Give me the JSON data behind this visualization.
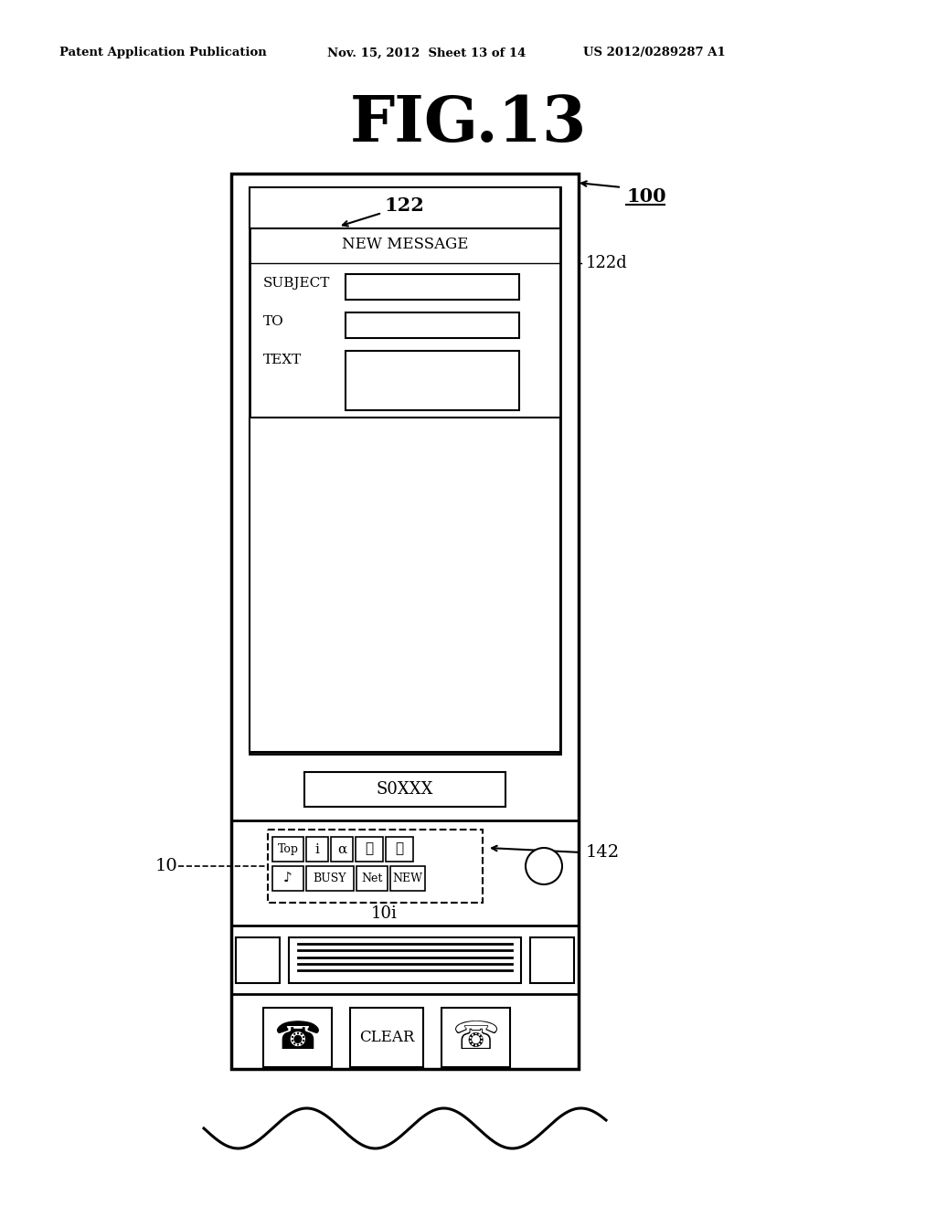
{
  "title": "FIG.13",
  "header_left": "Patent Application Publication",
  "header_mid": "Nov. 15, 2012  Sheet 13 of 14",
  "header_right": "US 2012/0289287 A1",
  "bg_color": "#ffffff",
  "label_100": "100",
  "label_122": "122",
  "label_122d": "122d",
  "label_142": "142",
  "label_10": "10",
  "label_10i": "10i",
  "text_new_message": "NEW MESSAGE",
  "text_subject": "SUBJECT",
  "text_to": "TO",
  "text_text": "TEXT",
  "text_s0xxx": "S0XXX",
  "text_top": "Top",
  "text_i": "i",
  "text_alpha": "α",
  "text_busy": "BUSY",
  "text_net": "Net",
  "text_new": "NEW",
  "text_clear": "CLEAR",
  "text_music": "♪"
}
